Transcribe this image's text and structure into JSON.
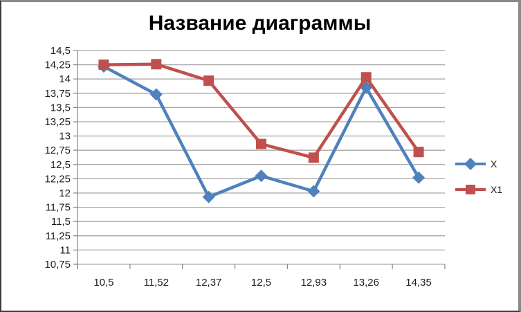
{
  "chart_data": {
    "type": "line",
    "title": "Название диаграммы",
    "categories": [
      "10,5",
      "11,52",
      "12,37",
      "12,5",
      "12,93",
      "13,26",
      "14,35"
    ],
    "series": [
      {
        "name": "X",
        "color": "#4F81BD",
        "marker": "diamond",
        "values": [
          14.22,
          13.73,
          11.93,
          12.3,
          12.03,
          13.85,
          12.27
        ]
      },
      {
        "name": "X1",
        "color": "#C0504D",
        "marker": "square",
        "values": [
          14.25,
          14.26,
          13.97,
          12.86,
          12.62,
          14.03,
          12.72
        ]
      }
    ],
    "ylim": [
      10.75,
      14.5
    ],
    "ytick_step": 0.25,
    "ytick_labels": [
      "14,5",
      "14,25",
      "14",
      "13,75",
      "13,5",
      "13,25",
      "13",
      "12,75",
      "12,5",
      "12,25",
      "12",
      "11,75",
      "11,5",
      "11,25",
      "11",
      "10,75"
    ],
    "xlabel": "",
    "ylabel": "",
    "grid": true,
    "legend_position": "right",
    "gridline_color": "#A6A6A6",
    "axis_color": "#8C8C8C",
    "text_color": "#1a1a1a",
    "title_color": "#000000"
  }
}
